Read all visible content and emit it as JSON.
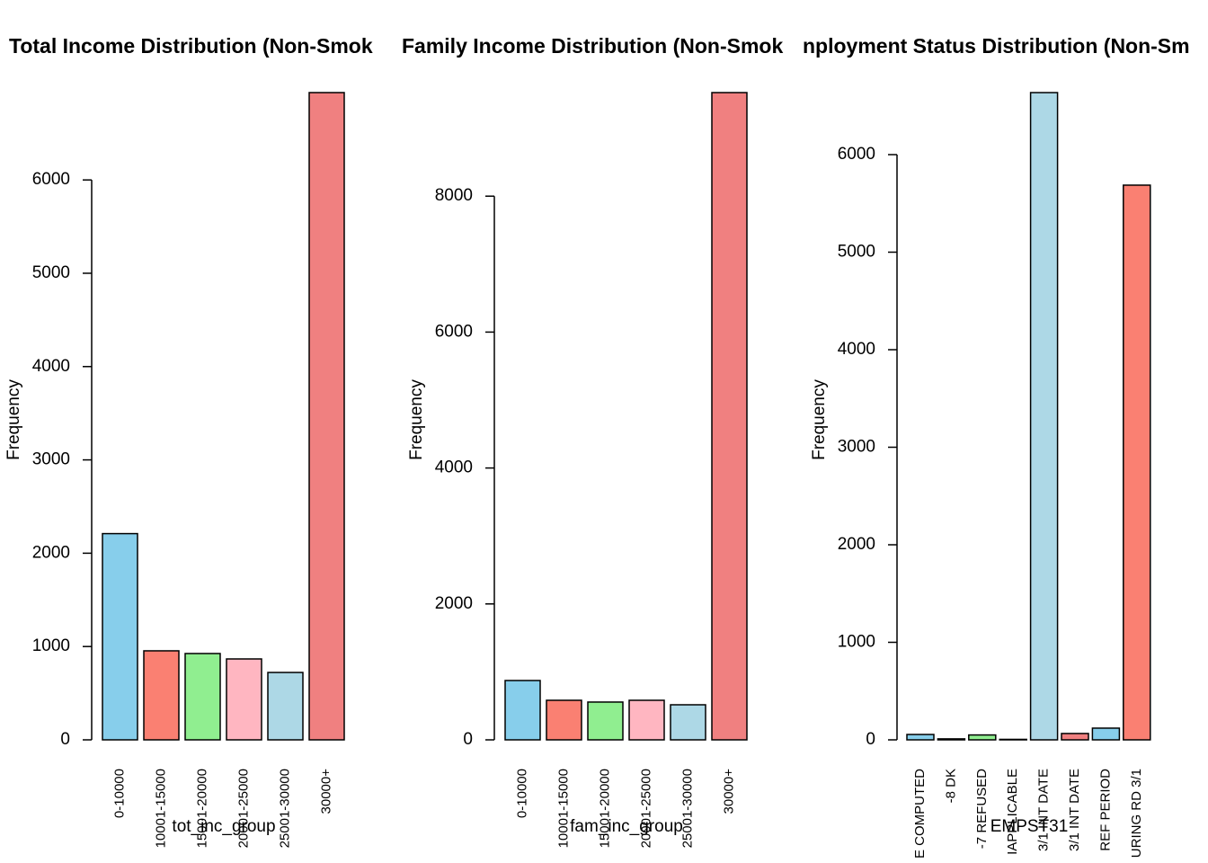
{
  "chart_data": [
    {
      "type": "bar",
      "title": "Total Income Distribution (Non-Smok",
      "xlabel": "tot_inc_group",
      "ylabel": "Frequency",
      "categories": [
        "0-10000",
        "10001-15000",
        "15001-20000",
        "20001-25000",
        "25001-30000",
        "30000+"
      ],
      "values": [
        2210,
        954,
        925,
        867,
        722,
        6936
      ],
      "colors": [
        "#87ceeb",
        "#fa8072",
        "#90ee90",
        "#ffb6c1",
        "#add8e6",
        "#f08080"
      ],
      "ylim": [
        0,
        6936
      ],
      "yticks": [
        0,
        1000,
        2000,
        3000,
        4000,
        5000,
        6000
      ]
    },
    {
      "type": "bar",
      "title": "Family Income Distribution (Non-Smok",
      "xlabel": "fam_inc_group",
      "ylabel": "Frequency",
      "categories": [
        "0-10000",
        "10001-15000",
        "15001-20000",
        "20001-25000",
        "25001-30000",
        "30000+"
      ],
      "values": [
        873,
        582,
        556,
        582,
        516,
        9524
      ],
      "colors": [
        "#87ceeb",
        "#fa8072",
        "#90ee90",
        "#ffb6c1",
        "#add8e6",
        "#f08080"
      ],
      "ylim": [
        0,
        9524
      ],
      "yticks": [
        0,
        2000,
        4000,
        6000,
        8000
      ]
    },
    {
      "type": "bar",
      "title": "nployment Status Distribution (Non-Sm",
      "xlabel": "EMPST31",
      "ylabel": "Frequency",
      "categories": [
        "E COMPUTED",
        "-8 DK",
        "-7 REFUSED",
        "IAPPLICABLE",
        "3/1 INT DATE",
        "3/1 INT DATE",
        "REF PERIOD",
        "URING RD 3/1"
      ],
      "values": [
        55,
        10,
        50,
        5,
        6636,
        65,
        120,
        5687
      ],
      "colors": [
        "#87ceeb",
        "#fa8072",
        "#90ee90",
        "#ffb6c1",
        "#add8e6",
        "#f08080",
        "#87ceeb",
        "#fa8072"
      ],
      "ylim": [
        0,
        6636
      ],
      "yticks": [
        0,
        1000,
        2000,
        3000,
        4000,
        5000,
        6000
      ]
    }
  ]
}
